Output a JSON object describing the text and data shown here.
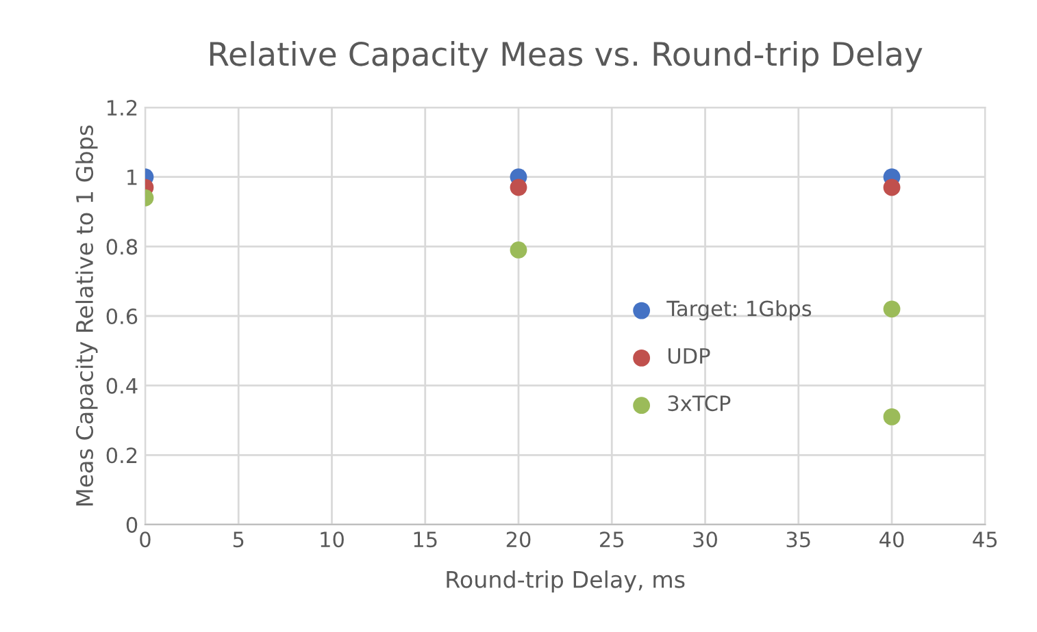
{
  "chart_data": {
    "type": "scatter",
    "title": "Relative Capacity Meas vs. Round-trip Delay",
    "xlabel": "Round-trip Delay, ms",
    "ylabel": "Meas Capacity Relative to 1 Gbps",
    "series": [
      {
        "name": "Target: 1Gbps",
        "color": "#4472c4",
        "x": [
          0,
          20,
          40
        ],
        "values": [
          1.0,
          1.0,
          1.0
        ]
      },
      {
        "name": "UDP",
        "color": "#c0504d",
        "x": [
          0,
          20,
          40
        ],
        "values": [
          0.97,
          0.97,
          0.97
        ]
      },
      {
        "name": "3xTCP",
        "color": "#9bbb59",
        "x": [
          0,
          20,
          40,
          40
        ],
        "values": [
          0.94,
          0.79,
          0.62,
          0.31
        ]
      }
    ],
    "xlim": [
      0,
      45
    ],
    "xticks": [
      0,
      5,
      10,
      15,
      20,
      25,
      30,
      35,
      40,
      45
    ],
    "ylim": [
      0,
      1.2
    ],
    "yticks": [
      0,
      0.2,
      0.4,
      0.6,
      0.8,
      1,
      1.2
    ],
    "grid": true,
    "legend": "right",
    "marker": "circle"
  }
}
